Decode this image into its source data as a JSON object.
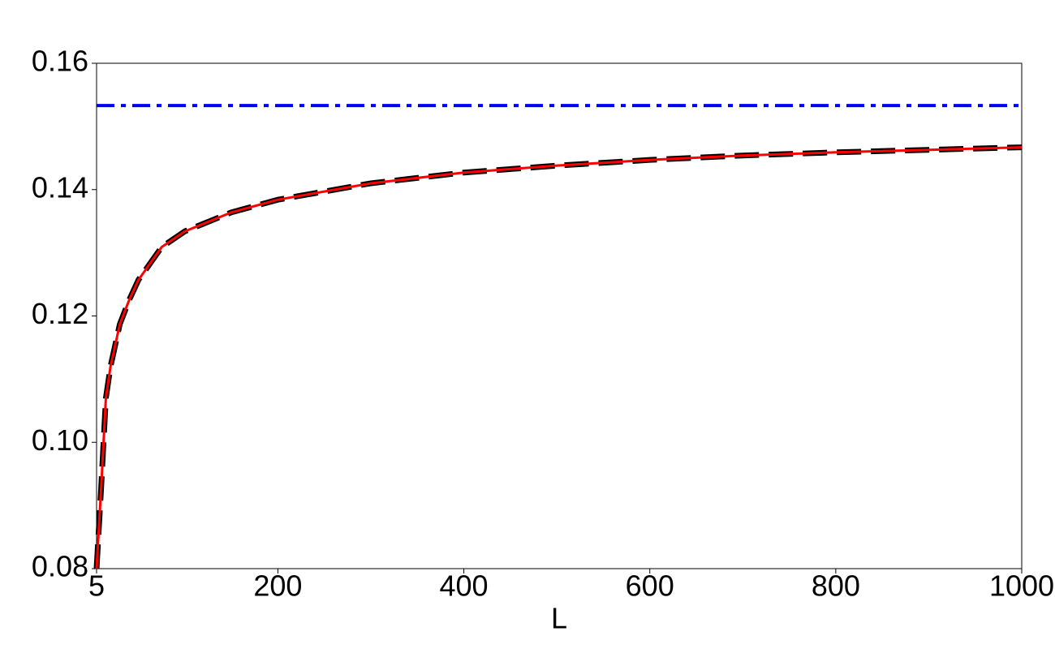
{
  "chart_data": {
    "type": "line",
    "x_label": "L",
    "x": [
      5,
      10,
      15,
      20,
      30,
      40,
      50,
      75,
      100,
      150,
      200,
      300,
      400,
      500,
      600,
      700,
      800,
      900,
      1000
    ],
    "series": [
      {
        "color": "#000000",
        "style": "dashed",
        "values": [
          0.08,
          0.093,
          0.107,
          0.112,
          0.1187,
          0.1225,
          0.1257,
          0.1309,
          0.1334,
          0.1364,
          0.1384,
          0.141,
          0.1427,
          0.1438,
          0.1447,
          0.1454,
          0.1459,
          0.1463,
          0.1467
        ]
      },
      {
        "color": "#ff0000",
        "style": "solid",
        "values": [
          0.08,
          0.093,
          0.107,
          0.112,
          0.1187,
          0.1225,
          0.1257,
          0.1309,
          0.1334,
          0.1364,
          0.1384,
          0.141,
          0.1427,
          0.1438,
          0.1447,
          0.1454,
          0.1459,
          0.1463,
          0.1467
        ]
      },
      {
        "color": "#0000ff",
        "style": "dashdot",
        "values": [
          0.1533,
          0.1533,
          0.1533,
          0.1533,
          0.1533,
          0.1533,
          0.1533,
          0.1533,
          0.1533,
          0.1533,
          0.1533,
          0.1533,
          0.1533,
          0.1533,
          0.1533,
          0.1533,
          0.1533,
          0.1533,
          0.1533
        ]
      }
    ],
    "xlim": [
      5,
      1000
    ],
    "xticks": [
      5,
      200,
      400,
      600,
      800,
      1000
    ],
    "ylim": [
      0.08,
      0.16
    ],
    "yticks": [
      0.08,
      {
        "value": 0.1,
        "label": "0.10"
      },
      {
        "value": 0.12,
        "label": "0.12"
      },
      0.14,
      0.16
    ]
  }
}
